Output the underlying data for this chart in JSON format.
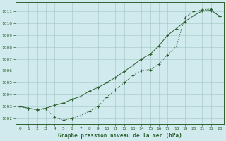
{
  "title": "Graphe pression niveau de la mer (hPa)",
  "bg_color": "#d0eaee",
  "grid_color": "#aacccc",
  "line_color": "#2d6030",
  "xlim": [
    -0.5,
    23.5
  ],
  "ylim": [
    1001.5,
    1011.8
  ],
  "yticks": [
    1002,
    1003,
    1004,
    1005,
    1006,
    1007,
    1008,
    1009,
    1010,
    1011
  ],
  "xticks": [
    0,
    1,
    2,
    3,
    4,
    5,
    6,
    7,
    8,
    9,
    10,
    11,
    12,
    13,
    14,
    15,
    16,
    17,
    18,
    19,
    20,
    21,
    22,
    23
  ],
  "series1_x": [
    0,
    1,
    2,
    3,
    4,
    5,
    6,
    7,
    8,
    9,
    10,
    11,
    12,
    13,
    14,
    15,
    16,
    17,
    18,
    19,
    20,
    21,
    22,
    23
  ],
  "series1_y": [
    1003.0,
    1002.85,
    1002.7,
    1002.8,
    1002.1,
    1001.85,
    1002.0,
    1002.25,
    1002.6,
    1003.0,
    1003.8,
    1004.4,
    1005.0,
    1005.6,
    1006.05,
    1006.1,
    1006.55,
    1007.35,
    1008.05,
    1010.5,
    1011.0,
    1011.15,
    1011.2,
    1010.6
  ],
  "series2_x": [
    0,
    1,
    2,
    3,
    4,
    5,
    6,
    7,
    8,
    9,
    10,
    11,
    12,
    13,
    14,
    15,
    16,
    17,
    18,
    19,
    20,
    21,
    22,
    23
  ],
  "series2_y": [
    1003.0,
    1002.85,
    1002.75,
    1002.85,
    1003.1,
    1003.3,
    1003.6,
    1003.85,
    1004.3,
    1004.6,
    1005.0,
    1005.45,
    1005.95,
    1006.45,
    1007.0,
    1007.4,
    1008.1,
    1009.0,
    1009.55,
    1010.15,
    1010.65,
    1011.05,
    1011.1,
    1010.6
  ]
}
